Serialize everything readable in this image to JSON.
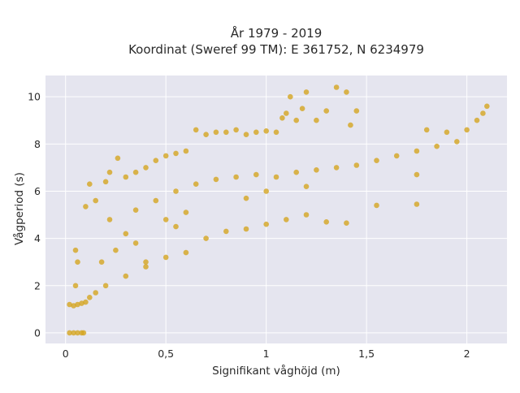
{
  "chart_data": {
    "type": "scatter",
    "title": "År 1979 - 2019",
    "subtitle": "Koordinat (Sweref 99 TM): E 361752, N 6234979",
    "xlabel": "Signifikant våghöjd (m)",
    "ylabel": "Vågperiod (s)",
    "xlim": [
      -0.1,
      2.2
    ],
    "ylim": [
      -0.45,
      10.9
    ],
    "x_ticks": [
      {
        "value": 0,
        "label": "0"
      },
      {
        "value": 0.5,
        "label": "0,5"
      },
      {
        "value": 1,
        "label": "1"
      },
      {
        "value": 1.5,
        "label": "1,5"
      },
      {
        "value": 2,
        "label": "2"
      }
    ],
    "y_ticks": [
      {
        "value": 0,
        "label": "0"
      },
      {
        "value": 2,
        "label": "2"
      },
      {
        "value": 4,
        "label": "4"
      },
      {
        "value": 6,
        "label": "6"
      },
      {
        "value": 8,
        "label": "8"
      },
      {
        "value": 10,
        "label": "10"
      }
    ],
    "grid": true,
    "legend": "none",
    "plot_background": "#e5e5ef",
    "grid_color": "#ffffff",
    "marker_color": "#d4a520",
    "series": [
      {
        "points": [
          [
            0.02,
            0.0
          ],
          [
            0.04,
            0.0
          ],
          [
            0.06,
            0.0
          ],
          [
            0.08,
            0.0
          ],
          [
            0.09,
            0.0
          ],
          [
            0.02,
            1.2
          ],
          [
            0.04,
            1.15
          ],
          [
            0.06,
            1.2
          ],
          [
            0.08,
            1.25
          ],
          [
            0.1,
            1.3
          ],
          [
            0.05,
            2.0
          ],
          [
            0.06,
            3.0
          ],
          [
            0.05,
            3.5
          ],
          [
            0.1,
            5.35
          ],
          [
            0.12,
            6.3
          ],
          [
            0.15,
            5.6
          ],
          [
            0.2,
            6.4
          ],
          [
            0.22,
            6.8
          ],
          [
            0.26,
            7.4
          ],
          [
            0.3,
            6.6
          ],
          [
            0.35,
            6.8
          ],
          [
            0.4,
            7.0
          ],
          [
            0.45,
            7.3
          ],
          [
            0.5,
            7.5
          ],
          [
            0.55,
            7.6
          ],
          [
            0.6,
            7.7
          ],
          [
            0.65,
            8.6
          ],
          [
            0.7,
            8.4
          ],
          [
            0.75,
            8.5
          ],
          [
            0.8,
            8.5
          ],
          [
            0.85,
            8.6
          ],
          [
            0.9,
            8.4
          ],
          [
            0.95,
            8.5
          ],
          [
            1.0,
            8.55
          ],
          [
            1.05,
            8.5
          ],
          [
            1.08,
            9.1
          ],
          [
            1.1,
            9.3
          ],
          [
            1.12,
            10.0
          ],
          [
            1.15,
            9.0
          ],
          [
            1.18,
            9.5
          ],
          [
            1.2,
            10.2
          ],
          [
            1.25,
            9.0
          ],
          [
            1.3,
            9.4
          ],
          [
            1.35,
            10.4
          ],
          [
            1.4,
            10.2
          ],
          [
            1.42,
            8.8
          ],
          [
            1.45,
            9.4
          ],
          [
            0.22,
            4.8
          ],
          [
            0.35,
            5.2
          ],
          [
            0.45,
            5.6
          ],
          [
            0.55,
            6.0
          ],
          [
            0.65,
            6.3
          ],
          [
            0.75,
            6.5
          ],
          [
            0.85,
            6.6
          ],
          [
            0.95,
            6.7
          ],
          [
            1.05,
            6.6
          ],
          [
            1.15,
            6.8
          ],
          [
            1.25,
            6.9
          ],
          [
            1.35,
            7.0
          ],
          [
            1.45,
            7.1
          ],
          [
            1.55,
            7.3
          ],
          [
            1.65,
            7.5
          ],
          [
            1.75,
            7.7
          ],
          [
            1.85,
            7.9
          ],
          [
            1.95,
            8.1
          ],
          [
            2.0,
            8.6
          ],
          [
            2.05,
            9.0
          ],
          [
            2.1,
            9.6
          ],
          [
            2.08,
            9.3
          ],
          [
            1.9,
            8.5
          ],
          [
            1.8,
            8.6
          ],
          [
            0.55,
            4.5
          ],
          [
            0.7,
            4.0
          ],
          [
            0.8,
            4.3
          ],
          [
            0.9,
            4.4
          ],
          [
            1.0,
            4.6
          ],
          [
            1.1,
            4.8
          ],
          [
            1.2,
            5.0
          ],
          [
            1.3,
            4.7
          ],
          [
            1.4,
            4.65
          ],
          [
            1.55,
            5.4
          ],
          [
            1.75,
            5.45
          ],
          [
            1.75,
            6.7
          ],
          [
            0.4,
            2.8
          ],
          [
            0.5,
            3.2
          ],
          [
            0.6,
            3.4
          ],
          [
            0.3,
            2.4
          ],
          [
            0.2,
            2.0
          ],
          [
            0.15,
            1.7
          ],
          [
            0.12,
            1.5
          ],
          [
            0.4,
            3.0
          ],
          [
            0.35,
            3.8
          ],
          [
            0.25,
            3.5
          ],
          [
            0.18,
            3.0
          ],
          [
            0.3,
            4.2
          ],
          [
            0.5,
            4.8
          ],
          [
            0.6,
            5.1
          ],
          [
            0.9,
            5.7
          ],
          [
            1.0,
            6.0
          ],
          [
            1.2,
            6.2
          ]
        ]
      }
    ]
  }
}
